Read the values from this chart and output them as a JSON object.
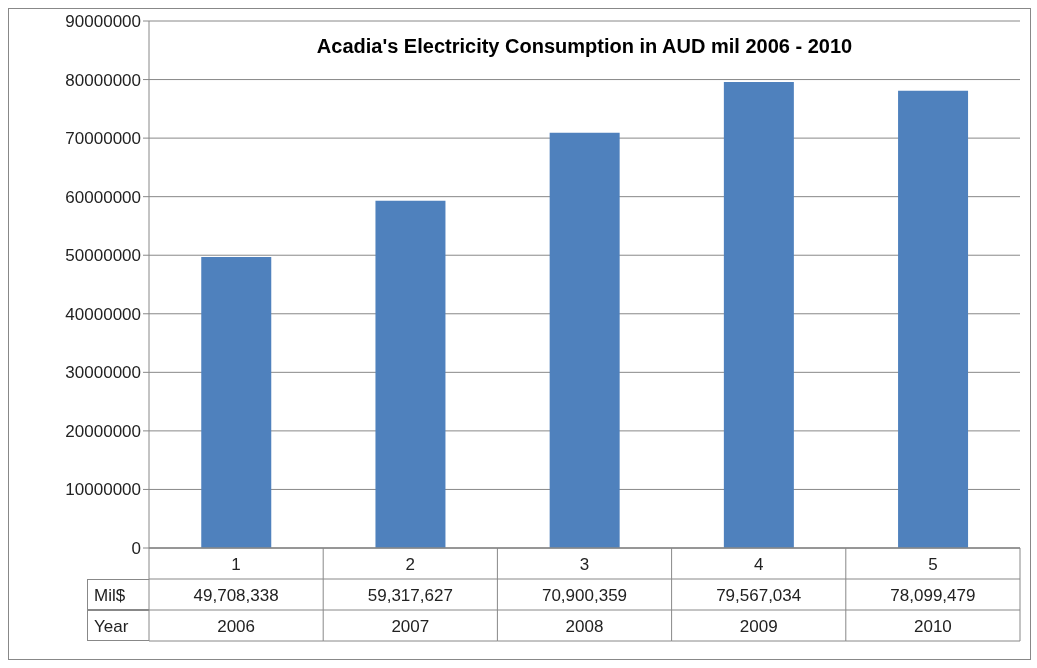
{
  "chart_data": {
    "type": "bar",
    "title": "Acadia's Electricity Consumption in AUD mil 2006 - 2010",
    "categories": [
      "1",
      "2",
      "3",
      "4",
      "5"
    ],
    "series": [
      {
        "name": "Mil$",
        "color": "#4f81bd",
        "values": [
          49708338,
          59317627,
          70900359,
          79567034,
          78099479
        ],
        "value_labels": [
          "49,708,338",
          "59,317,627",
          "70,900,359",
          "79,567,034",
          "78,099,479"
        ]
      }
    ],
    "ylim": [
      0,
      90000000
    ],
    "yticks": [
      0,
      10000000,
      20000000,
      30000000,
      40000000,
      50000000,
      60000000,
      70000000,
      80000000,
      90000000
    ],
    "grid": "y",
    "annotations": [
      "Year",
      "2006",
      "2007",
      "2008",
      "2009",
      "2010"
    ]
  }
}
